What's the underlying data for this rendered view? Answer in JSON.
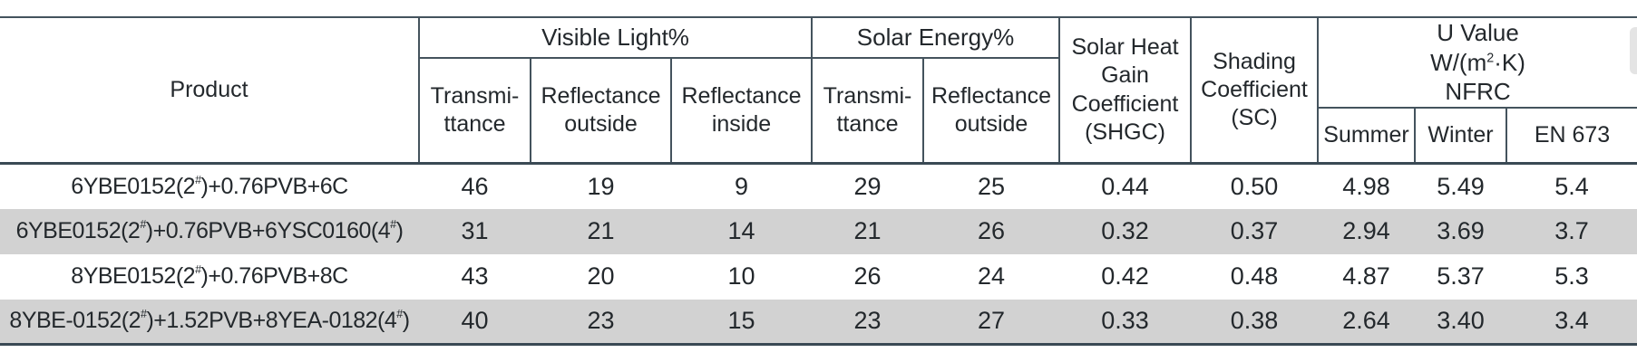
{
  "header": {
    "product": "Product",
    "groups": {
      "visible_light": "Visible Light%",
      "solar_energy": "Solar Energy%",
      "shgc": "Solar Heat\nGain\nCoefficient\n(SHGC)",
      "shading": "Shading\nCoefficient\n(SC)",
      "u_value": "U Value\nW/(m^2·K)\nNFRC"
    },
    "visible_light_cols": [
      "Transmi-\nttance",
      "Reflectance\noutside",
      "Reflectance\ninside"
    ],
    "solar_energy_cols": [
      "Transmi-\nttance",
      "Reflectance\noutside"
    ],
    "u_value_cols": [
      "Summer",
      "Winter",
      "EN 673"
    ]
  },
  "rows": [
    {
      "product": "6YBE0152(2#)+0.76PVB+6C",
      "values": [
        "46",
        "19",
        "9",
        "29",
        "25",
        "0.44",
        "0.50",
        "4.98",
        "5.49",
        "5.4"
      ]
    },
    {
      "product": "6YBE0152(2#)+0.76PVB+6YSC0160(4#)",
      "values": [
        "31",
        "21",
        "14",
        "21",
        "26",
        "0.32",
        "0.37",
        "2.94",
        "3.69",
        "3.7"
      ]
    },
    {
      "product": "8YBE0152(2#)+0.76PVB+8C",
      "values": [
        "43",
        "20",
        "10",
        "26",
        "24",
        "0.42",
        "0.48",
        "4.87",
        "5.37",
        "5.3"
      ]
    },
    {
      "product": "8YBE-0152(2#)+1.52PVB+8YEA-0182(4#)",
      "values": [
        "40",
        "23",
        "15",
        "23",
        "27",
        "0.33",
        "0.38",
        "2.64",
        "3.40",
        "3.4"
      ]
    }
  ],
  "colors": {
    "row_alt_background": "#d2d2d2",
    "border_thin": "#44535d",
    "border_heavy": "#3a4954",
    "text": "#23282c",
    "scrollbar": "#e4e4e4"
  }
}
